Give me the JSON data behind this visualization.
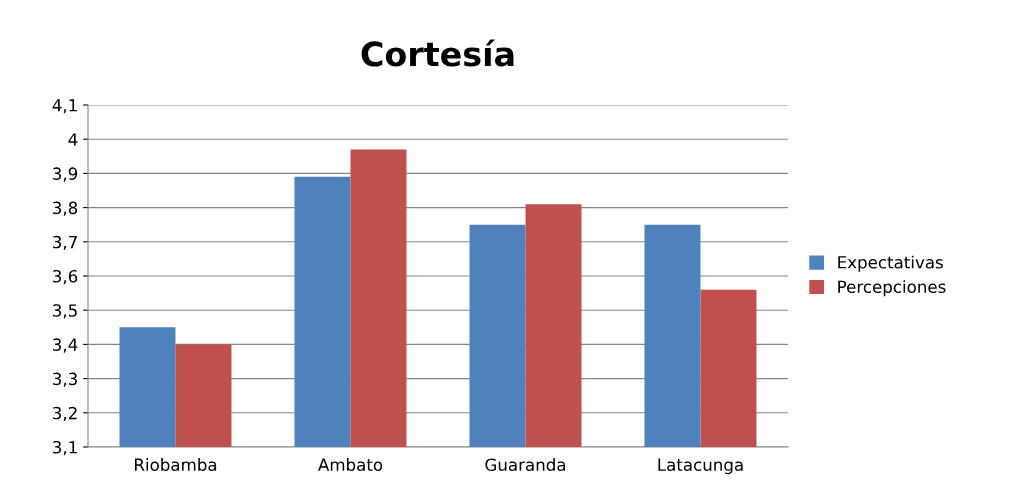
{
  "chart_data": {
    "type": "bar",
    "title": "Cortesía",
    "categories": [
      "Riobamba",
      "Ambato",
      "Guaranda",
      "Latacunga"
    ],
    "series": [
      {
        "name": "Expectativas",
        "color": "#4f81bd",
        "values": [
          3.45,
          3.89,
          3.75,
          3.75
        ]
      },
      {
        "name": "Percepciones",
        "color": "#c0504d",
        "values": [
          3.4,
          3.97,
          3.81,
          3.56
        ]
      }
    ],
    "ylim": [
      3.1,
      4.1
    ],
    "yticks": [
      {
        "value": 3.1,
        "label": "3,1"
      },
      {
        "value": 3.2,
        "label": "3,2"
      },
      {
        "value": 3.3,
        "label": "3,3"
      },
      {
        "value": 3.4,
        "label": "3,4"
      },
      {
        "value": 3.5,
        "label": "3,5"
      },
      {
        "value": 3.6,
        "label": "3,6"
      },
      {
        "value": 3.7,
        "label": "3,7"
      },
      {
        "value": 3.8,
        "label": "3,8"
      },
      {
        "value": 3.9,
        "label": "3,9"
      },
      {
        "value": 4,
        "label": "4"
      },
      {
        "value": 4.1,
        "label": "4,1"
      }
    ],
    "grid": "y",
    "legend": "right"
  }
}
